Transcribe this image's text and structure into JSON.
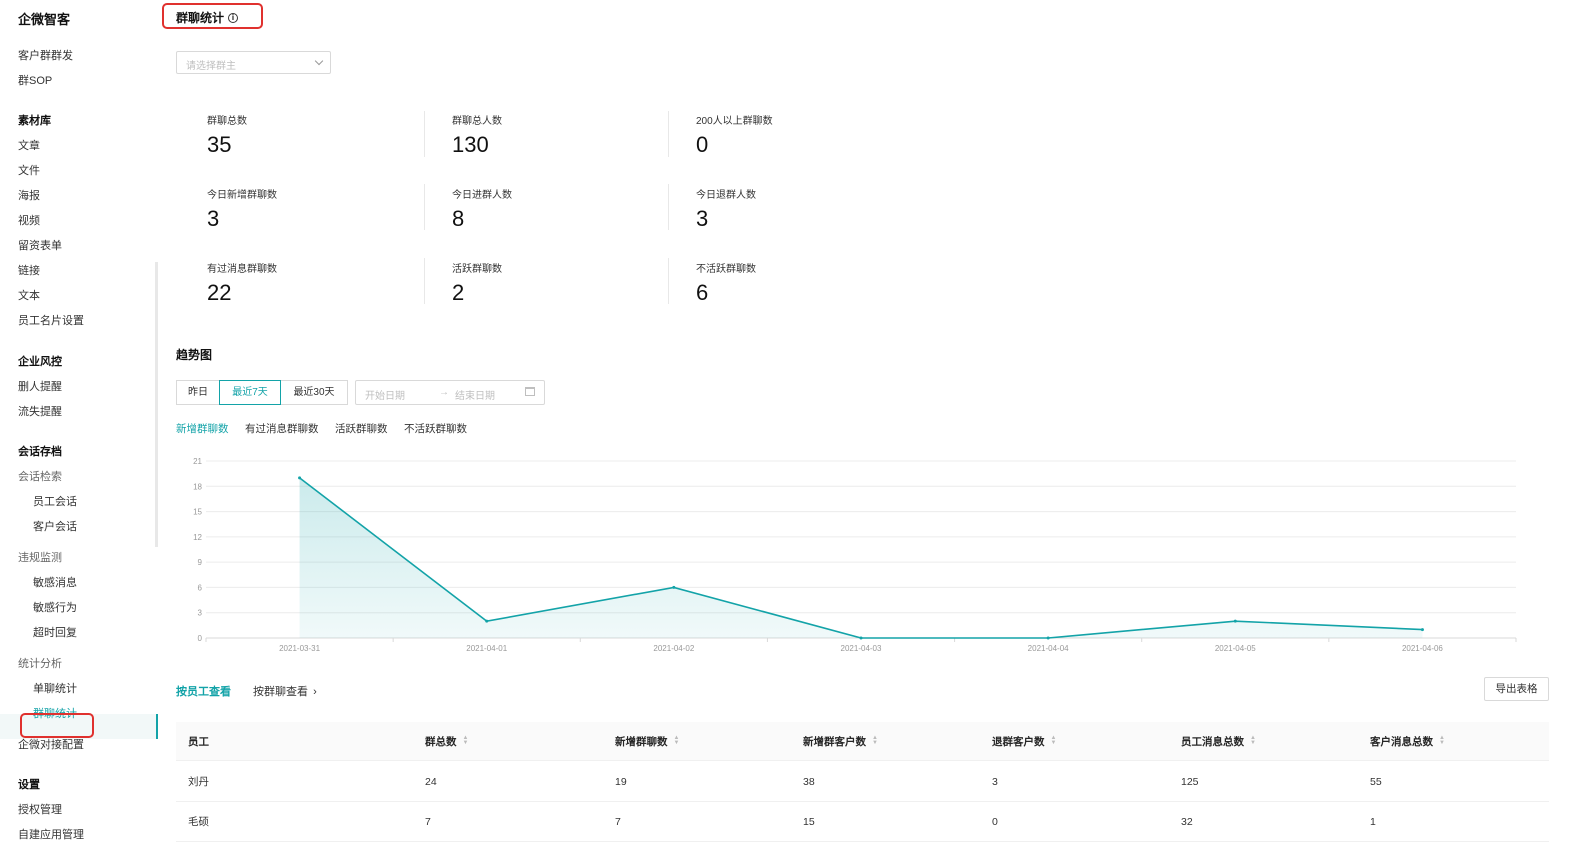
{
  "sidebar": {
    "brand": "企微智客",
    "items": [
      {
        "label": "客户群群发",
        "kind": "item"
      },
      {
        "label": "群SOP",
        "kind": "item"
      },
      {
        "label": "素材库",
        "kind": "group"
      },
      {
        "label": "文章",
        "kind": "item"
      },
      {
        "label": "文件",
        "kind": "item"
      },
      {
        "label": "海报",
        "kind": "item"
      },
      {
        "label": "视频",
        "kind": "item"
      },
      {
        "label": "留资表单",
        "kind": "item"
      },
      {
        "label": "链接",
        "kind": "item"
      },
      {
        "label": "文本",
        "kind": "item"
      },
      {
        "label": "员工名片设置",
        "kind": "item"
      },
      {
        "label": "企业风控",
        "kind": "group"
      },
      {
        "label": "删人提醒",
        "kind": "item"
      },
      {
        "label": "流失提醒",
        "kind": "item"
      },
      {
        "label": "会话存档",
        "kind": "group"
      },
      {
        "label": "会话检索",
        "kind": "sub"
      },
      {
        "label": "员工会话",
        "kind": "child"
      },
      {
        "label": "客户会话",
        "kind": "child"
      },
      {
        "label": "违规监测",
        "kind": "sub"
      },
      {
        "label": "敏感消息",
        "kind": "child"
      },
      {
        "label": "敏感行为",
        "kind": "child"
      },
      {
        "label": "超时回复",
        "kind": "child"
      },
      {
        "label": "统计分析",
        "kind": "sub"
      },
      {
        "label": "单聊统计",
        "kind": "child"
      },
      {
        "label": "群聊统计",
        "kind": "child",
        "active": true
      },
      {
        "label": "企微对接配置",
        "kind": "item"
      },
      {
        "label": "设置",
        "kind": "group"
      },
      {
        "label": "授权管理",
        "kind": "item"
      },
      {
        "label": "自建应用管理",
        "kind": "item"
      }
    ]
  },
  "page": {
    "title": "群聊统计",
    "owner_select_placeholder": "请选择群主"
  },
  "stats": [
    {
      "label": "群聊总数",
      "value": "35"
    },
    {
      "label": "群聊总人数",
      "value": "130"
    },
    {
      "label": "200人以上群聊数",
      "value": "0"
    },
    {
      "label": "今日新增群聊数",
      "value": "3"
    },
    {
      "label": "今日进群人数",
      "value": "8"
    },
    {
      "label": "今日退群人数",
      "value": "3"
    },
    {
      "label": "有过消息群聊数",
      "value": "22"
    },
    {
      "label": "活跃群聊数",
      "value": "2"
    },
    {
      "label": "不活跃群聊数",
      "value": "6"
    }
  ],
  "trend": {
    "title": "趋势图",
    "ranges": [
      "昨日",
      "最近7天",
      "最近30天"
    ],
    "active_range": "最近7天",
    "start_placeholder": "开始日期",
    "end_placeholder": "结束日期",
    "arrow": "→",
    "metric_tabs": [
      "新增群聊数",
      "有过消息群聊数",
      "活跃群聊数",
      "不活跃群聊数"
    ],
    "active_metric": "新增群聊数"
  },
  "chart_data": {
    "type": "area",
    "x": [
      "2021-03-31",
      "2021-04-01",
      "2021-04-02",
      "2021-04-03",
      "2021-04-04",
      "2021-04-05",
      "2021-04-06"
    ],
    "series": [
      {
        "values": [
          19,
          2,
          6,
          0,
          0,
          2,
          1
        ]
      }
    ],
    "yticks": [
      0,
      3,
      6,
      9,
      12,
      15,
      18,
      21
    ],
    "ylim": [
      0,
      21
    ],
    "grid": true,
    "colors": {
      "line": "#13a3a8",
      "fill": "#13a3a8"
    }
  },
  "view_tabs": {
    "by_employee": "按员工查看",
    "by_group": "按群聊查看"
  },
  "export_label": "导出表格",
  "table": {
    "columns": [
      "员工",
      "群总数",
      "新增群聊数",
      "新增群客户数",
      "退群客户数",
      "员工消息总数",
      "客户消息总数"
    ],
    "rows": [
      [
        "刘丹",
        "24",
        "19",
        "38",
        "3",
        "125",
        "55"
      ],
      [
        "毛硕",
        "7",
        "7",
        "15",
        "0",
        "32",
        "1"
      ]
    ]
  },
  "colors": {
    "accent": "#13a3a8",
    "highlight_box": "#e0312e"
  }
}
